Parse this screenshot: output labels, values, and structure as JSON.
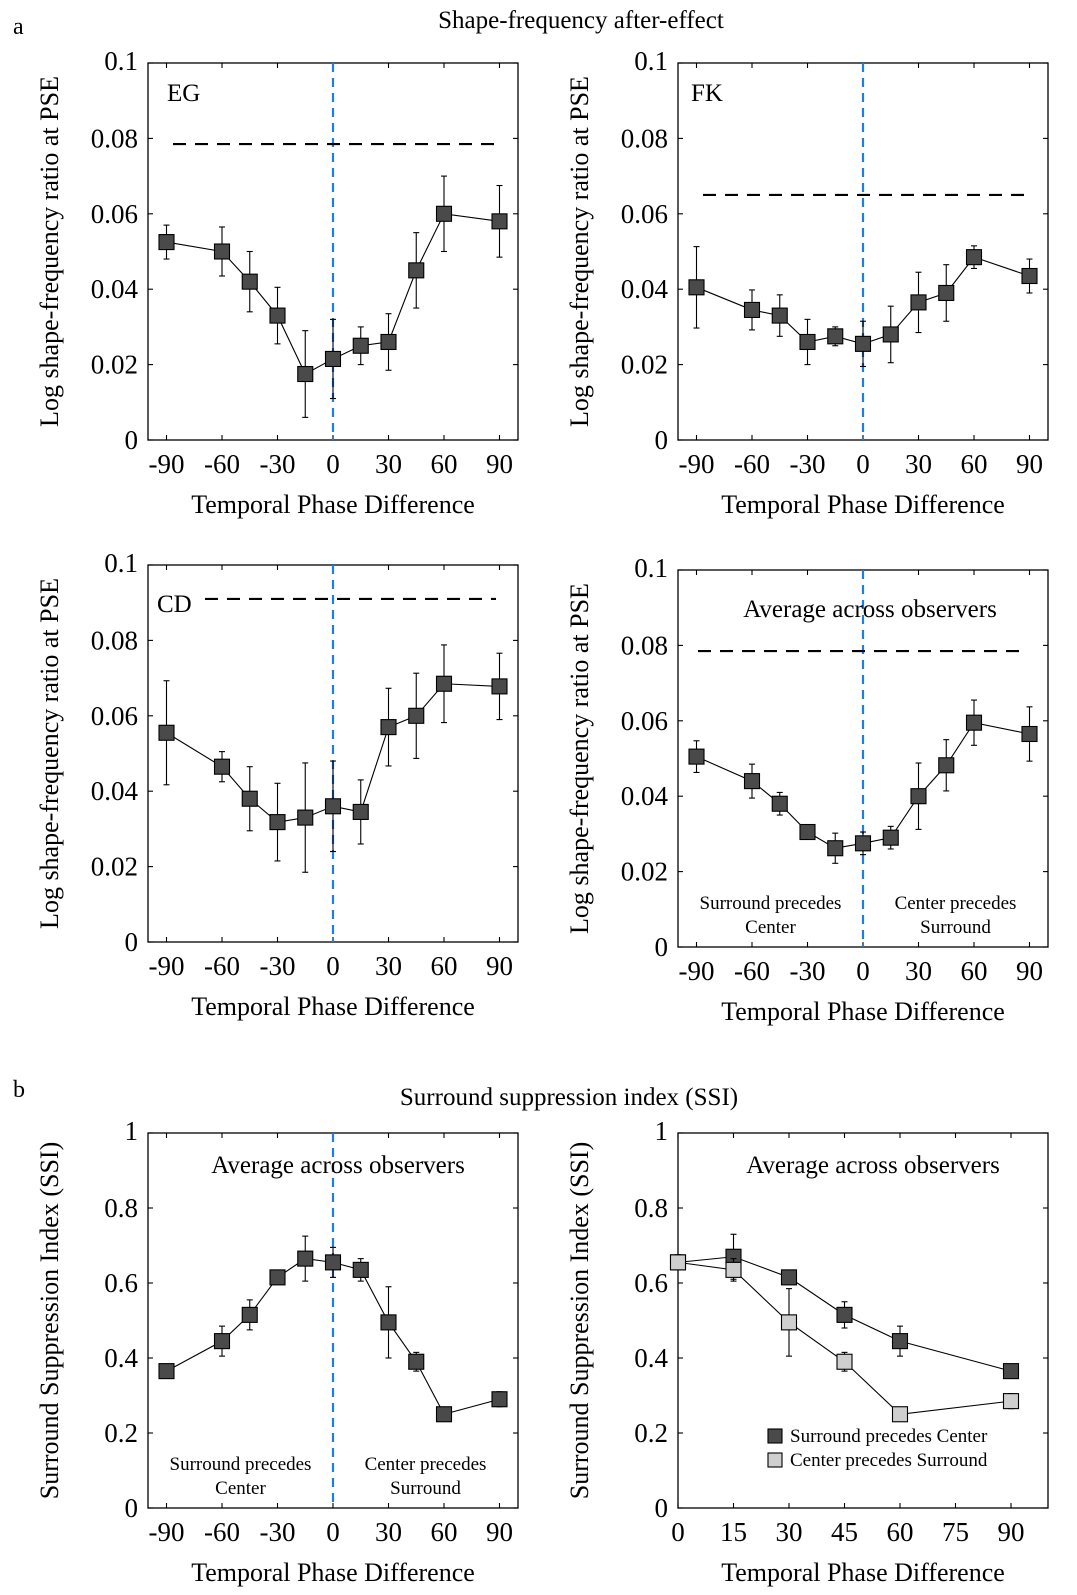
{
  "figure": {
    "section_a": {
      "letter": "a",
      "title": "Shape-frequency after-effect"
    },
    "section_b": {
      "letter": "b",
      "title": "Surround suppression index (SSI)"
    }
  },
  "colors": {
    "marker_dark": "#4a4a4a",
    "marker_light": "#cfcfcf",
    "zero_line": "#1e7fe0",
    "baseline": "#000000"
  },
  "chart_data": [
    {
      "id": "eg",
      "type": "scatter",
      "title": "EG",
      "xlabel": "Temporal Phase Difference",
      "ylabel": "Log shape-frequency ratio at PSE",
      "xlim": [
        -100,
        100
      ],
      "ylim": [
        0,
        0.1
      ],
      "xticks": [
        "-90",
        "-60",
        "-30",
        "0",
        "30",
        "60",
        "90"
      ],
      "xtick_values": [
        -90,
        -60,
        -30,
        0,
        30,
        60,
        90
      ],
      "yticks": [
        "0",
        "0.02",
        "0.04",
        "0.06",
        "0.08",
        "0.1"
      ],
      "ytick_values": [
        0,
        0.02,
        0.04,
        0.06,
        0.08,
        0.1
      ],
      "baseline": 0.0785,
      "vline_x": 0,
      "series": [
        {
          "x": [
            -90,
            -60,
            -45,
            -30,
            -15,
            0,
            15,
            30,
            45,
            60,
            90
          ],
          "y": [
            0.0525,
            0.05,
            0.042,
            0.033,
            0.0175,
            0.0215,
            0.025,
            0.026,
            0.045,
            0.06,
            0.058
          ],
          "err": [
            0.0045,
            0.0065,
            0.008,
            0.0075,
            0.0115,
            0.0105,
            0.005,
            0.0075,
            0.01,
            0.01,
            0.0095
          ],
          "color": "#4a4a4a"
        }
      ]
    },
    {
      "id": "fk",
      "type": "scatter",
      "title": "FK",
      "xlabel": "Temporal Phase Difference",
      "ylabel": "Log shape-frequency ratio at PSE",
      "xlim": [
        -100,
        100
      ],
      "ylim": [
        0,
        0.1
      ],
      "xticks": [
        "-90",
        "-60",
        "-30",
        "0",
        "30",
        "60",
        "90"
      ],
      "xtick_values": [
        -90,
        -60,
        -30,
        0,
        30,
        60,
        90
      ],
      "yticks": [
        "0",
        "0.02",
        "0.04",
        "0.06",
        "0.08",
        "0.1"
      ],
      "ytick_values": [
        0,
        0.02,
        0.04,
        0.06,
        0.08,
        0.1
      ],
      "baseline": 0.065,
      "vline_x": 0,
      "series": [
        {
          "x": [
            -90,
            -60,
            -45,
            -30,
            -15,
            0,
            15,
            30,
            45,
            60,
            90
          ],
          "y": [
            0.0405,
            0.0345,
            0.033,
            0.026,
            0.0275,
            0.0255,
            0.028,
            0.0365,
            0.039,
            0.0485,
            0.0435
          ],
          "err": [
            0.0108,
            0.0053,
            0.0055,
            0.006,
            0.0025,
            0.006,
            0.0075,
            0.008,
            0.0075,
            0.003,
            0.0045
          ],
          "color": "#4a4a4a"
        }
      ]
    },
    {
      "id": "cd",
      "type": "scatter",
      "title": "CD",
      "xlabel": "Temporal Phase Difference",
      "ylabel": "Log shape-frequency ratio at PSE",
      "xlim": [
        -100,
        100
      ],
      "ylim": [
        0,
        0.1
      ],
      "xticks": [
        "-90",
        "-60",
        "-30",
        "0",
        "30",
        "60",
        "90"
      ],
      "xtick_values": [
        -90,
        -60,
        -30,
        0,
        30,
        60,
        90
      ],
      "yticks": [
        "0",
        "0.02",
        "0.04",
        "0.06",
        "0.08",
        "0.1"
      ],
      "ytick_values": [
        0,
        0.02,
        0.04,
        0.06,
        0.08,
        0.1
      ],
      "baseline": 0.091,
      "vline_x": 0,
      "series": [
        {
          "x": [
            -90,
            -60,
            -45,
            -30,
            -15,
            0,
            15,
            30,
            45,
            60,
            90
          ],
          "y": [
            0.0555,
            0.0465,
            0.038,
            0.0318,
            0.033,
            0.036,
            0.0345,
            0.057,
            0.06,
            0.0685,
            0.0678
          ],
          "err": [
            0.0138,
            0.004,
            0.0085,
            0.0103,
            0.0145,
            0.012,
            0.0085,
            0.0103,
            0.0113,
            0.0103,
            0.0088
          ],
          "color": "#4a4a4a"
        }
      ]
    },
    {
      "id": "avg_a",
      "type": "scatter",
      "title": "Average across observers",
      "xlabel": "Temporal Phase Difference",
      "ylabel": "Log shape-frequency ratio at PSE",
      "xlim": [
        -100,
        100
      ],
      "ylim": [
        0,
        0.1
      ],
      "xticks": [
        "-90",
        "-60",
        "-30",
        "0",
        "30",
        "60",
        "90"
      ],
      "xtick_values": [
        -90,
        -60,
        -30,
        0,
        30,
        60,
        90
      ],
      "yticks": [
        "0",
        "0.02",
        "0.04",
        "0.06",
        "0.08",
        "0.1"
      ],
      "ytick_values": [
        0,
        0.02,
        0.04,
        0.06,
        0.08,
        0.1
      ],
      "baseline": 0.0785,
      "vline_x": 0,
      "annotations": {
        "left": [
          "Surround precedes",
          "Center"
        ],
        "right": [
          "Center precedes",
          "Surround"
        ]
      },
      "series": [
        {
          "x": [
            -90,
            -60,
            -45,
            -30,
            -15,
            0,
            15,
            30,
            45,
            60,
            90
          ],
          "y": [
            0.0505,
            0.044,
            0.038,
            0.0305,
            0.0262,
            0.0275,
            0.029,
            0.04,
            0.0482,
            0.0595,
            0.0565
          ],
          "err": [
            0.0042,
            0.0045,
            0.003,
            0.0015,
            0.004,
            0.003,
            0.003,
            0.0088,
            0.0068,
            0.006,
            0.0072
          ],
          "color": "#4a4a4a"
        }
      ]
    },
    {
      "id": "ssi_phase",
      "type": "scatter",
      "title": "Average across observers",
      "xlabel": "Temporal Phase Difference",
      "ylabel": "Surround Suppression Index (SSI)",
      "xlim": [
        -100,
        100
      ],
      "ylim": [
        0,
        1
      ],
      "xticks": [
        "-90",
        "-60",
        "-30",
        "0",
        "30",
        "60",
        "90"
      ],
      "xtick_values": [
        -90,
        -60,
        -30,
        0,
        30,
        60,
        90
      ],
      "yticks": [
        "0",
        "0.2",
        "0.4",
        "0.6",
        "0.8",
        "1"
      ],
      "ytick_values": [
        0,
        0.2,
        0.4,
        0.6,
        0.8,
        1
      ],
      "vline_x": 0,
      "annotations": {
        "left": [
          "Surround precedes",
          "Center"
        ],
        "right": [
          "Center precedes",
          "Surround"
        ]
      },
      "series": [
        {
          "x": [
            -90,
            -60,
            -45,
            -30,
            -15,
            0,
            15,
            30,
            45,
            60,
            90
          ],
          "y": [
            0.365,
            0.445,
            0.515,
            0.615,
            0.665,
            0.655,
            0.635,
            0.495,
            0.39,
            0.25,
            0.29
          ],
          "err": [
            0,
            0.04,
            0.04,
            0,
            0.06,
            0.04,
            0.03,
            0.095,
            0.025,
            0,
            0.02
          ],
          "color": "#4a4a4a"
        }
      ]
    },
    {
      "id": "ssi_abs",
      "type": "scatter",
      "title": "Average across observers",
      "xlabel": "Temporal Phase Difference",
      "ylabel": "Surround Suppression Index (SSI)",
      "xlim": [
        0,
        100
      ],
      "ylim": [
        0,
        1
      ],
      "xticks": [
        "0",
        "15",
        "30",
        "45",
        "60",
        "75",
        "90"
      ],
      "xtick_values": [
        0,
        15,
        30,
        45,
        60,
        75,
        90
      ],
      "yticks": [
        "0",
        "0.2",
        "0.4",
        "0.6",
        "0.8",
        "1"
      ],
      "ytick_values": [
        0,
        0.2,
        0.4,
        0.6,
        0.8,
        1
      ],
      "legend_position": "lower-right",
      "series": [
        {
          "name": "Surround precedes Center",
          "x": [
            0,
            15,
            30,
            45,
            60,
            90
          ],
          "y": [
            0.655,
            0.67,
            0.615,
            0.515,
            0.445,
            0.365
          ],
          "err": [
            0.02,
            0.06,
            0.015,
            0.035,
            0.04,
            0
          ],
          "color": "#4a4a4a"
        },
        {
          "name": "Center precedes Surround",
          "x": [
            0,
            15,
            30,
            45,
            60,
            90
          ],
          "y": [
            0.655,
            0.635,
            0.495,
            0.39,
            0.25,
            0.285
          ],
          "err": [
            0.02,
            0.03,
            0.09,
            0.025,
            0,
            0.02
          ],
          "color": "#cfcfcf"
        }
      ]
    }
  ]
}
